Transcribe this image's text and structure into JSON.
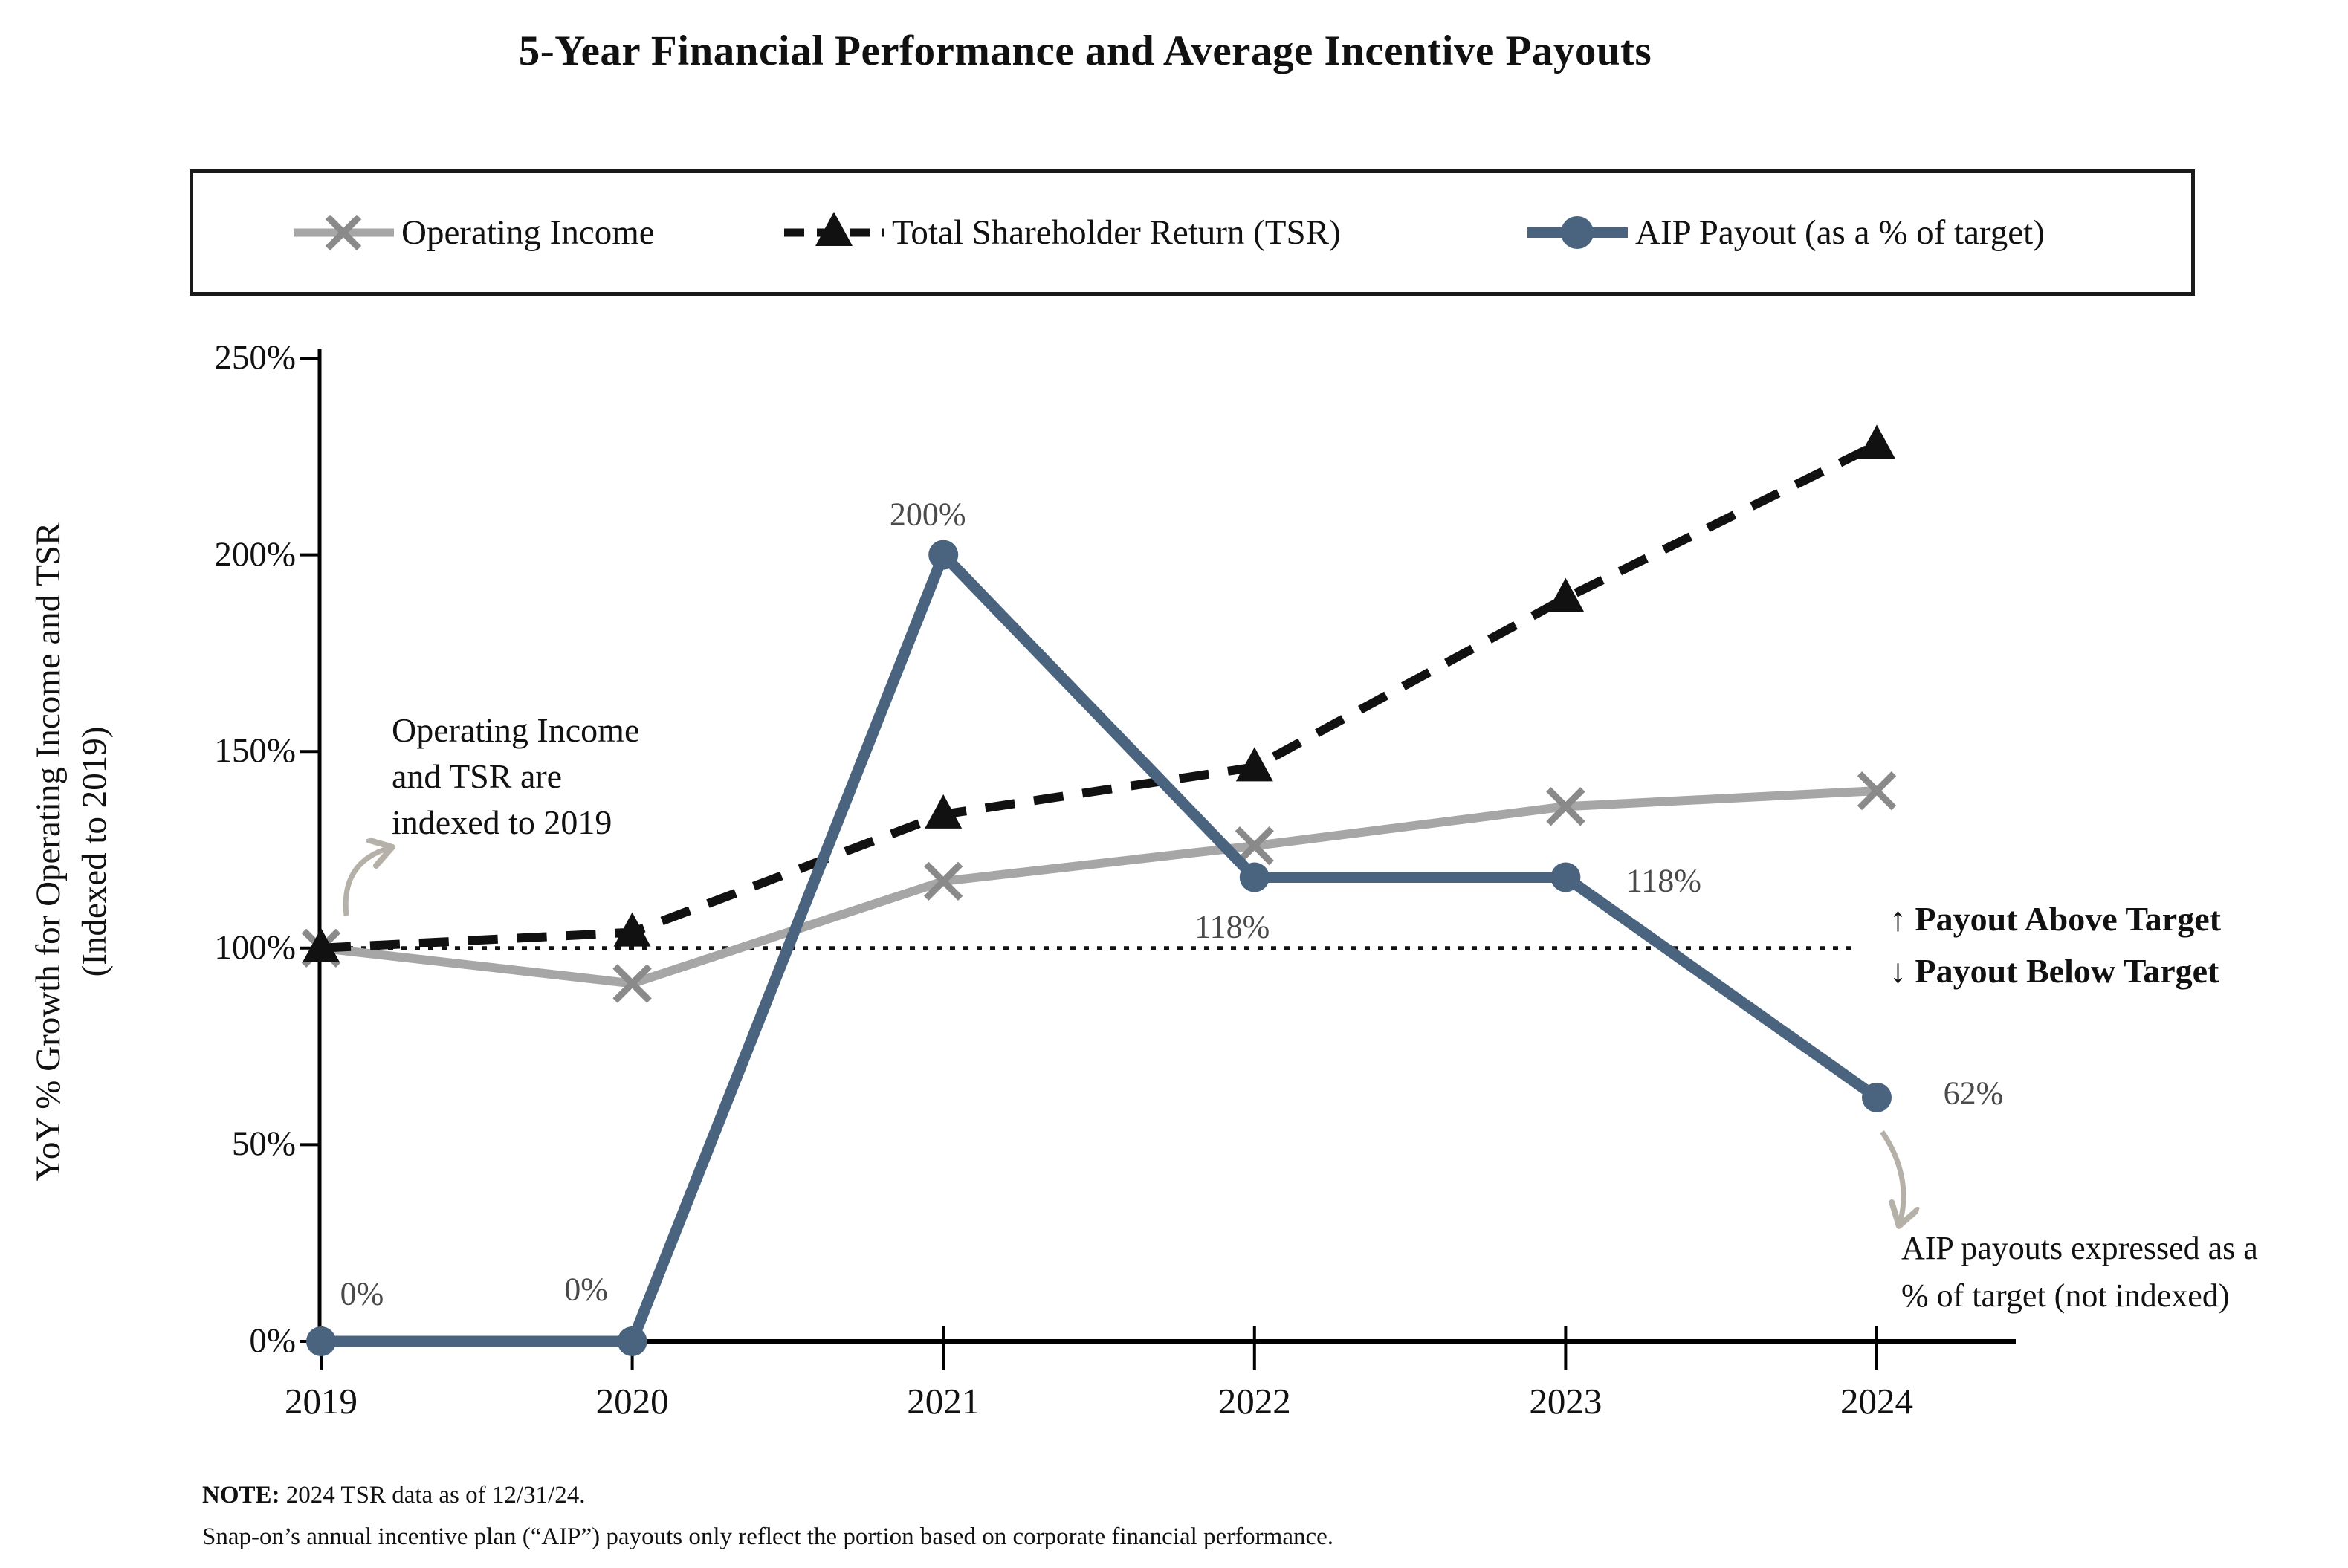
{
  "title": "5-Year Financial Performance and Average Incentive Payouts",
  "legend": {
    "items": [
      {
        "label": "Operating Income",
        "marker": "x-marker-icon",
        "color": "#a6a6a6",
        "line": "solid"
      },
      {
        "label": "Total Shareholder Return (TSR)",
        "marker": "triangle-marker-icon",
        "color": "#111111",
        "line": "dashed"
      },
      {
        "label": "AIP Payout (as a % of target)",
        "marker": "circle-marker-icon",
        "color": "#4a6480",
        "line": "solid"
      }
    ]
  },
  "y_axis": {
    "title_line1": "YoY % Growth for Operating Income and TSR",
    "title_line2": "(Indexed to 2019)",
    "tick_labels": [
      "0%",
      "50%",
      "100%",
      "150%",
      "200%",
      "250%"
    ],
    "tick_values": [
      0,
      50,
      100,
      150,
      200,
      250
    ]
  },
  "x_axis": {
    "labels": [
      "2019",
      "2020",
      "2021",
      "2022",
      "2023",
      "2024"
    ]
  },
  "chart_data": {
    "type": "line",
    "categories": [
      "2019",
      "2020",
      "2021",
      "2022",
      "2023",
      "2024"
    ],
    "series": [
      {
        "name": "Operating Income",
        "values": [
          100,
          91,
          117,
          126,
          136,
          140
        ],
        "color": "#a6a6a6",
        "marker": "x",
        "line": "solid"
      },
      {
        "name": "Total Shareholder Return (TSR)",
        "values": [
          100,
          104,
          134,
          146,
          189,
          228
        ],
        "color": "#111111",
        "marker": "triangle",
        "line": "dashed"
      },
      {
        "name": "AIP Payout (as a % of target)",
        "values": [
          0,
          0,
          200,
          118,
          118,
          62
        ],
        "color": "#4a6480",
        "marker": "circle",
        "line": "solid",
        "point_labels": [
          "0%",
          "0%",
          "200%",
          "118%",
          "118%",
          "62%"
        ]
      }
    ],
    "title": "5-Year Financial Performance and Average Incentive Payouts",
    "ylabel": "YoY % Growth for Operating Income and TSR (Indexed to 2019)",
    "xlabel": "",
    "ylim": [
      0,
      250
    ],
    "y_tick_step": 50,
    "reference_line_y": 100,
    "grid": false,
    "legend_position": "top"
  },
  "annotations": {
    "indexed_lines": [
      "Operating Income",
      "and TSR are",
      "indexed to 2019"
    ],
    "payout_above": "↑ Payout Above Target",
    "payout_below": "↓ Payout Below Target",
    "aip_note_lines": [
      "AIP payouts expressed as a",
      "% of target (not indexed)"
    ]
  },
  "note": {
    "label": "NOTE:",
    "line1": " 2024 TSR data as of 12/31/24.",
    "line2": "Snap-on’s annual incentive plan (“AIP”) payouts only reflect the portion based on corporate financial performance."
  },
  "colors": {
    "operating_income": "#a6a6a6",
    "operating_income_marker": "#8a8a8a",
    "tsr": "#111111",
    "aip": "#4a6480",
    "annotation_arrow": "#b5b1a9",
    "point_label_text": "#4a4a4a",
    "axis": "#000000"
  }
}
